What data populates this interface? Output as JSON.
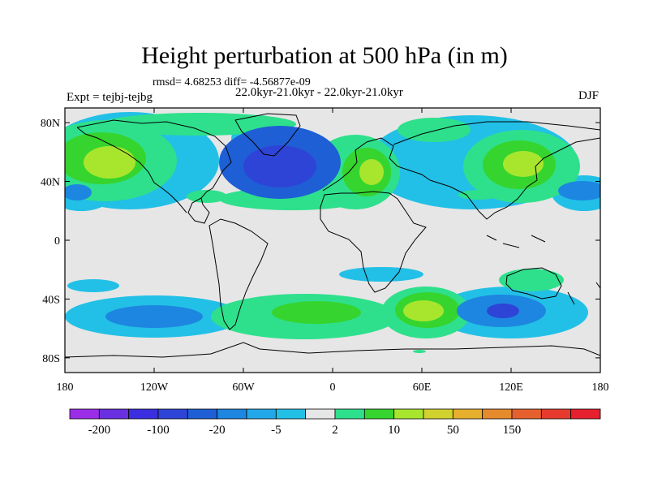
{
  "title": "Height perturbation at 500 hPa (in m)",
  "stats_line": "rmsd= 4.68253  diff= -4.56877e-09",
  "experiment_label": "Expt = tejbj-tejbg",
  "period_label": "22.0kyr-21.0kyr - 22.0kyr-21.0kyr",
  "season_label": "DJF",
  "map": {
    "projection": "cylindrical-equidistant",
    "lon_range": [
      -180,
      180
    ],
    "lat_range": [
      -90,
      90
    ],
    "lon_ticks": [
      "180",
      "120W",
      "60W",
      "0",
      "60E",
      "120E",
      "180"
    ],
    "lat_ticks": [
      "80N",
      "40N",
      "0",
      "40S",
      "80S"
    ],
    "background_color": "#e6e6e6"
  },
  "colorbar": {
    "colors": [
      "#9b2de8",
      "#6a2fe0",
      "#3b2ee0",
      "#2e44d6",
      "#1e5fd6",
      "#1d86e0",
      "#22a8e8",
      "#22c0e6",
      "#e6e6e6",
      "#2ee08c",
      "#36d42e",
      "#a8e62e",
      "#d2d22e",
      "#e6b02e",
      "#e68a2e",
      "#e6602e",
      "#e63a2e",
      "#e6202e"
    ],
    "labels": [
      "-200",
      "-100",
      "-20",
      "-5",
      "2",
      "10",
      "50",
      "150"
    ]
  }
}
